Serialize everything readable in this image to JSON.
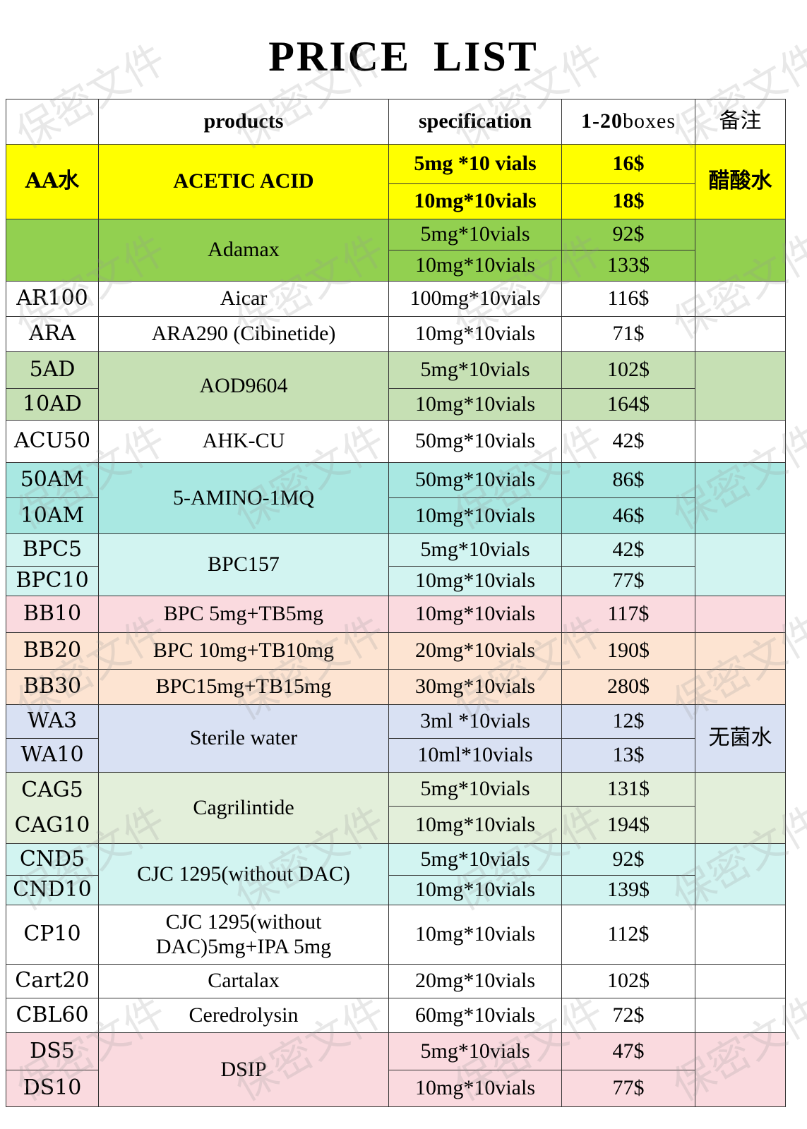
{
  "title": "PRICE  LIST",
  "watermark": "保密文件",
  "header": {
    "code": "",
    "products": "products",
    "specification": "specification",
    "price": "1-20boxes",
    "note": "备注"
  },
  "colors": {
    "yellow": "#ffff00",
    "green": "#92d050",
    "white": "#ffffff",
    "light_green": "#c6e0b4",
    "teal": "#a9e8e2",
    "light_cyan": "#d2f4f1",
    "pink": "#fadadf",
    "peach": "#fde4d2",
    "lavender": "#d9e1f3",
    "pale_green": "#e3efda",
    "grid": "#333333"
  },
  "groups": [
    {
      "product": "ACETIC  ACID",
      "color": "yellow",
      "bold": true,
      "note": "醋酸水",
      "rows": [
        {
          "code": "AA水",
          "spec": "5mg *10 vials",
          "price": "16$"
        },
        {
          "code": null,
          "spec": "10mg*10vials",
          "price": "18$"
        }
      ]
    },
    {
      "product": "Adamax",
      "color": "green",
      "note": "",
      "rows": [
        {
          "code": "",
          "spec": "5mg*10vials",
          "price": "92$"
        },
        {
          "code": null,
          "spec": "10mg*10vials",
          "price": "133$"
        }
      ]
    },
    {
      "product": "Aicar",
      "color": "white",
      "note": "",
      "rows": [
        {
          "code": "AR100",
          "spec": "100mg*10vials",
          "price": "116$"
        }
      ]
    },
    {
      "product": "ARA290 (Cibinetide)",
      "color": "white",
      "note": "",
      "rows": [
        {
          "code": "ARA",
          "spec": "10mg*10vials",
          "price": "71$"
        }
      ]
    },
    {
      "product": "AOD9604",
      "color": "light_green",
      "note": "",
      "rows": [
        {
          "code": "5AD",
          "spec": "5mg*10vials",
          "price": "102$"
        },
        {
          "code": "10AD",
          "spec": "10mg*10vials",
          "price": "164$"
        }
      ]
    },
    {
      "product": "AHK-CU",
      "color": "white",
      "note": "",
      "rows": [
        {
          "code": "ACU50",
          "spec": "50mg*10vials",
          "price": "42$"
        }
      ]
    },
    {
      "product": "5-AMINO-1MQ",
      "color": "teal",
      "note": "",
      "rows": [
        {
          "code": "50AM",
          "spec": "50mg*10vials",
          "price": "86$"
        },
        {
          "code": "10AM",
          "spec": "10mg*10vials",
          "price": "46$"
        }
      ]
    },
    {
      "product": "BPC157",
      "color": "light_cyan",
      "note": "",
      "rows": [
        {
          "code": "BPC5",
          "spec": "5mg*10vials",
          "price": "42$"
        },
        {
          "code": "BPC10",
          "spec": "10mg*10vials",
          "price": "77$"
        }
      ]
    },
    {
      "product": "BPC 5mg+TB5mg",
      "color": "pink",
      "note": "",
      "rows": [
        {
          "code": "BB10",
          "spec": "10mg*10vials",
          "price": "117$"
        }
      ]
    },
    {
      "product": "BPC 10mg+TB10mg",
      "color": "peach",
      "note": "",
      "rows": [
        {
          "code": "BB20",
          "spec": "20mg*10vials",
          "price": "190$"
        }
      ]
    },
    {
      "product": "BPC15mg+TB15mg",
      "color": "peach",
      "note": "",
      "rows": [
        {
          "code": "BB30",
          "spec": "30mg*10vials",
          "price": "280$"
        }
      ]
    },
    {
      "product": "Sterile  water",
      "color": "lavender",
      "note": "无菌水",
      "rows": [
        {
          "code": "WA3",
          "spec": "3ml *10vials",
          "price": "12$"
        },
        {
          "code": "WA10",
          "spec": "10ml*10vials",
          "price": "13$"
        }
      ]
    },
    {
      "product": "Cagrilintide",
      "color": "pale_green",
      "note": "",
      "code_merged": true,
      "rows": [
        {
          "code": "CAG5",
          "spec": "5mg*10vials",
          "price": "131$"
        },
        {
          "code": "CAG10",
          "spec": "10mg*10vials",
          "price": "194$"
        }
      ]
    },
    {
      "product": "CJC 1295(without DAC)",
      "color": "light_cyan",
      "note": "",
      "rows": [
        {
          "code": "CND5",
          "spec": "5mg*10vials",
          "price": "92$"
        },
        {
          "code": "CND10",
          "spec": "10mg*10vials",
          "price": "139$"
        }
      ]
    },
    {
      "product": "CJC 1295(without DAC)5mg+IPA 5mg",
      "color": "white",
      "note": "",
      "rows": [
        {
          "code": "CP10",
          "spec": "10mg*10vials",
          "price": "112$"
        }
      ]
    },
    {
      "product": "Cartalax",
      "color": "white",
      "note": "",
      "rows": [
        {
          "code": "Cart20",
          "spec": "20mg*10vials",
          "price": "102$"
        }
      ]
    },
    {
      "product": "Ceredrolysin",
      "color": "white",
      "note": "",
      "rows": [
        {
          "code": "CBL60",
          "spec": "60mg*10vials",
          "price": "72$"
        }
      ]
    },
    {
      "product": "DSIP",
      "color": "pink",
      "note": "",
      "rows": [
        {
          "code": "DS5",
          "spec": "5mg*10vials",
          "price": "47$"
        },
        {
          "code": "DS10",
          "spec": "10mg*10vials",
          "price": "77$"
        }
      ]
    }
  ]
}
